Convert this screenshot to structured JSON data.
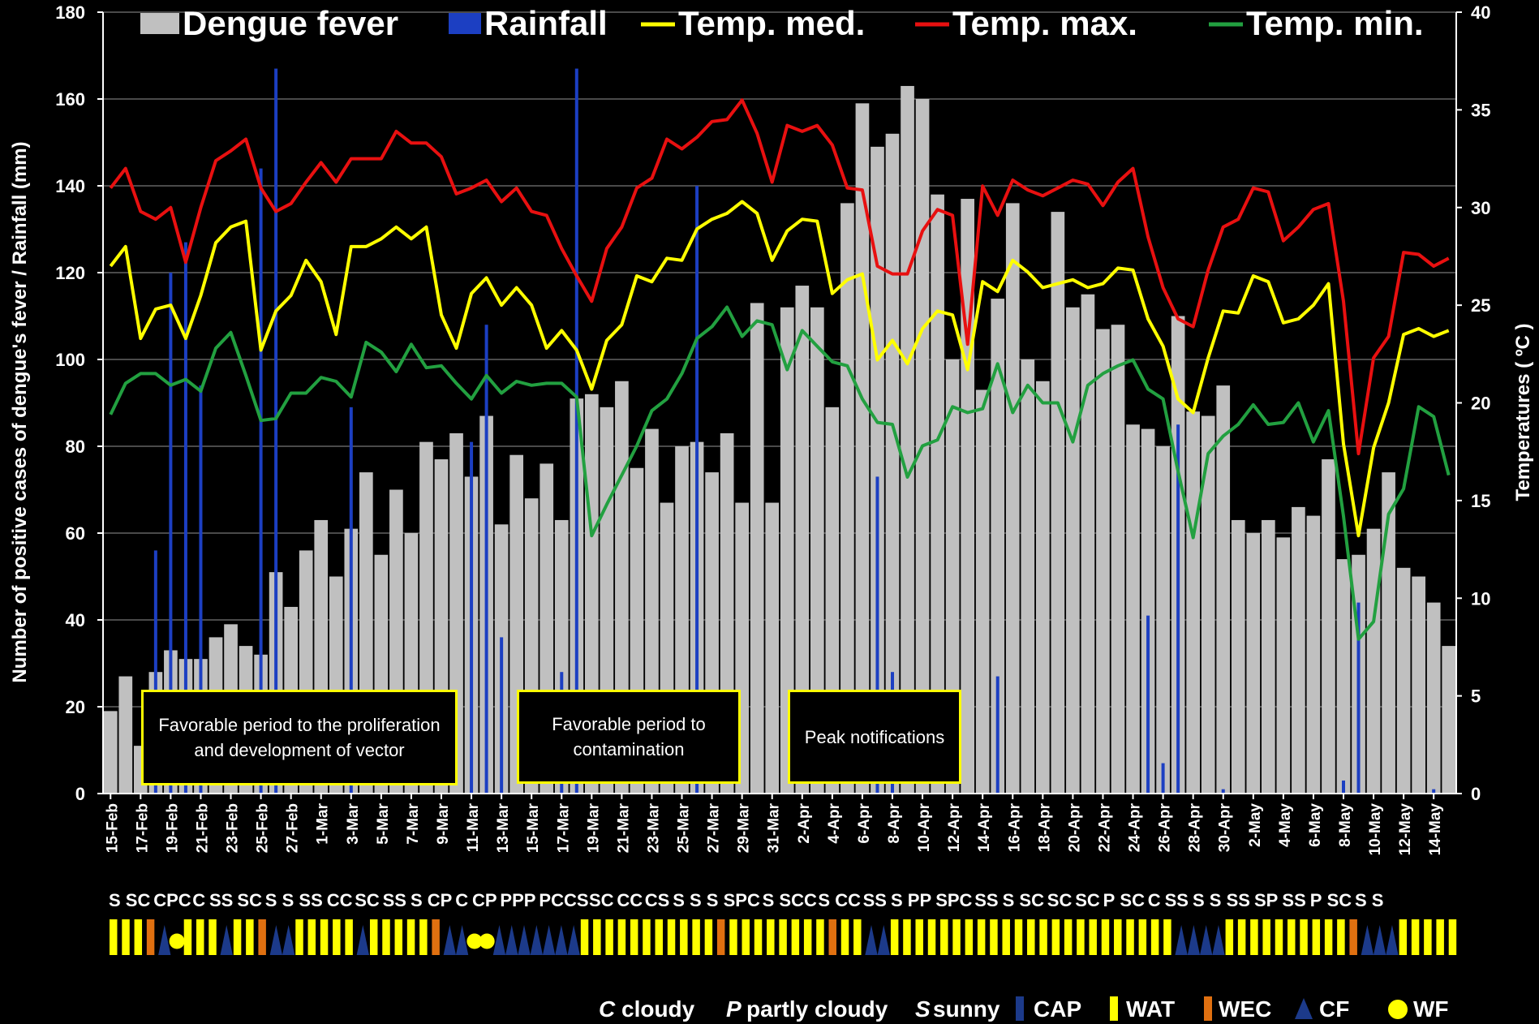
{
  "chart_data": {
    "type": "bar",
    "legend": [
      "Dengue fever",
      "Rainfall",
      "Temp. med.",
      "Temp. max.",
      "Temp. min."
    ],
    "legend_position": "top",
    "ylabel_left": "Number of positive cases of dengue's fever / Rainfall (mm)",
    "ylabel_right": "Temperatures  ( ºC )",
    "ylim_left": [
      0,
      180
    ],
    "ylim_right": [
      0,
      40
    ],
    "yticks_left": [
      "0",
      "20",
      "40",
      "60",
      "80",
      "100",
      "120",
      "140",
      "160",
      "180"
    ],
    "yticks_right": [
      "0",
      "5",
      "10",
      "15",
      "20",
      "25",
      "30",
      "35",
      "40"
    ],
    "grid": true,
    "colors": {
      "dengue": "#c0c0c0",
      "rain": "#1c3fc2",
      "med": "#ffff00",
      "max": "#e81010",
      "min": "#22a040",
      "box_border": "#ffff00"
    },
    "x_labels": [
      "15-Feb",
      "17-Feb",
      "19-Feb",
      "21-Feb",
      "23-Feb",
      "25-Feb",
      "27-Feb",
      "1-Mar",
      "3-Mar",
      "5-Mar",
      "7-Mar",
      "9-Mar",
      "11-Mar",
      "13-Mar",
      "15-Mar",
      "17-Mar",
      "19-Mar",
      "21-Mar",
      "23-Mar",
      "25-Mar",
      "27-Mar",
      "29-Mar",
      "31-Mar",
      "2-Apr",
      "4-Apr",
      "6-Apr",
      "8-Apr",
      "10-Apr",
      "12-Apr",
      "14-Apr",
      "16-Apr",
      "18-Apr",
      "20-Apr",
      "22-Apr",
      "24-Apr",
      "26-Apr",
      "28-Apr",
      "30-Apr",
      "2-May",
      "4-May",
      "6-May",
      "8-May",
      "10-May",
      "12-May",
      "14-May"
    ],
    "dengue": [
      19,
      27,
      11,
      28,
      33,
      31,
      31,
      36,
      39,
      34,
      32,
      51,
      43,
      56,
      63,
      50,
      61,
      74,
      55,
      70,
      60,
      81,
      77,
      83,
      73,
      87,
      62,
      78,
      68,
      76,
      63,
      91,
      92,
      89,
      95,
      75,
      84,
      67,
      80,
      81,
      74,
      83,
      67,
      113,
      67,
      112,
      117,
      112,
      89,
      136,
      159,
      149,
      152,
      163,
      160,
      138,
      100,
      137,
      93,
      114,
      136,
      100,
      95,
      134,
      112,
      115,
      107,
      108,
      85,
      84,
      80,
      110,
      88,
      87,
      94,
      63,
      60,
      63,
      59,
      66,
      64,
      77,
      54,
      55,
      61,
      74,
      52,
      50,
      44,
      34
    ],
    "rainfall": [
      0,
      0,
      0,
      56,
      120,
      127,
      94,
      0,
      0,
      0,
      144,
      167,
      0,
      0,
      0,
      0,
      89,
      0,
      0,
      0,
      0,
      0,
      0,
      0,
      81,
      108,
      36,
      0,
      0,
      0,
      28,
      167,
      0,
      0,
      0,
      0,
      0,
      0,
      0,
      140,
      0,
      0,
      0,
      0,
      0,
      0,
      0,
      0,
      0,
      0,
      0,
      73,
      28,
      0,
      0,
      0,
      0,
      0,
      0,
      27,
      0,
      0,
      0,
      0,
      0,
      0,
      0,
      0,
      0,
      41,
      7,
      85,
      0,
      0,
      1,
      0,
      0,
      0,
      0,
      0,
      0,
      0,
      3,
      44,
      0,
      0,
      0,
      0,
      1,
      0
    ],
    "temp_med": [
      27,
      28,
      23.3,
      24.8,
      25,
      23.3,
      25.5,
      28.2,
      29,
      29.3,
      22.7,
      24.7,
      25.5,
      27.3,
      26.2,
      23.5,
      28,
      28,
      28.4,
      29,
      28.4,
      29,
      24.5,
      22.8,
      25.6,
      26.4,
      25,
      25.9,
      25,
      22.8,
      23.7,
      22.7,
      20.7,
      23.2,
      24,
      26.5,
      26.2,
      27.4,
      27.3,
      28.9,
      29.4,
      29.7,
      30.3,
      29.7,
      27.3,
      28.8,
      29.4,
      29.3,
      25.6,
      26.3,
      26.6,
      22.2,
      23.2,
      22,
      23.8,
      24.7,
      24.5,
      21.7,
      26.2,
      25.7,
      27.3,
      26.7,
      25.9,
      26.1,
      26.3,
      25.9,
      26.1,
      26.9,
      26.8,
      24.3,
      22.9,
      20.2,
      19.5,
      22.3,
      24.7,
      24.6,
      26.5,
      26.2,
      24.1,
      24.3,
      25,
      26.1,
      17.9,
      13.2,
      17.7,
      20,
      23.5,
      23.8,
      23.4,
      23.7
    ],
    "temp_max": [
      31,
      32,
      29.8,
      29.4,
      30,
      27.2,
      30,
      32.4,
      32.9,
      33.5,
      31,
      29.8,
      30.2,
      31.3,
      32.3,
      31.3,
      32.5,
      32.5,
      32.5,
      33.9,
      33.3,
      33.3,
      32.6,
      30.7,
      31,
      31.4,
      30.3,
      31,
      29.8,
      29.6,
      27.9,
      26.5,
      25.2,
      27.9,
      29,
      31,
      31.5,
      33.5,
      33,
      33.6,
      34.4,
      34.5,
      35.5,
      33.8,
      31.3,
      34.2,
      33.9,
      34.2,
      33.2,
      31,
      30.9,
      27,
      26.6,
      26.6,
      28.8,
      29.9,
      29.6,
      23,
      31.1,
      29.6,
      31.4,
      30.9,
      30.6,
      31,
      31.4,
      31.2,
      30.1,
      31.3,
      32,
      28.5,
      25.9,
      24.3,
      23.9,
      26.8,
      29,
      29.4,
      31,
      30.8,
      28.3,
      29,
      29.9,
      30.2,
      25.2,
      17.4,
      22.3,
      23.4,
      27.7,
      27.6,
      27,
      27.4
    ],
    "temp_min": [
      19.4,
      21,
      21.5,
      21.5,
      20.9,
      21.2,
      20.6,
      22.8,
      23.6,
      21.4,
      19.1,
      19.2,
      20.5,
      20.5,
      21.3,
      21.1,
      20.3,
      23.1,
      22.6,
      21.6,
      23,
      21.8,
      21.9,
      21,
      20.2,
      21.4,
      20.5,
      21.1,
      20.9,
      21,
      21,
      20.3,
      13.2,
      14.8,
      16.3,
      17.8,
      19.6,
      20.2,
      21.5,
      23.3,
      23.9,
      24.9,
      23.4,
      24.2,
      24,
      21.7,
      23.7,
      22.9,
      22.1,
      21.9,
      20.2,
      19,
      18.9,
      16.2,
      17.8,
      18.1,
      19.8,
      19.5,
      19.7,
      22,
      19.5,
      20.9,
      20,
      20,
      18,
      20.9,
      21.5,
      21.9,
      22.2,
      20.7,
      20.2,
      16.5,
      13.1,
      17.4,
      18.3,
      18.9,
      19.9,
      18.9,
      19,
      20,
      18,
      19.6,
      14.2,
      7.9,
      8.8,
      14.3,
      15.6,
      19.8,
      19.3,
      16.3
    ]
  },
  "sky": [
    "S",
    "SC",
    "CPC",
    "C",
    "SS",
    "SC",
    "S",
    "S",
    "SS",
    "CC",
    "SC",
    "SS",
    "S",
    "CP",
    "C",
    "CP",
    "PPP",
    "PCCS",
    "SC",
    "CC",
    "CS",
    "S",
    "S",
    "S",
    "SPC",
    "S",
    "SCC",
    "S",
    "CC",
    "SS",
    "S",
    "PP",
    "SPC",
    "SS",
    "S",
    "SC",
    "SC",
    "SC",
    "P",
    "SC",
    "C",
    "SS",
    "S",
    "S",
    "SS",
    "SP",
    "SS",
    "P",
    "SC",
    "S",
    "S"
  ],
  "annotations": [
    {
      "text": "Favorable period to the proliferation and development of vector"
    },
    {
      "text": "Favorable period to contamination"
    },
    {
      "text": "Peak notifications"
    }
  ],
  "footer_legend": {
    "c_key": "C",
    "c_label": "cloudy",
    "p_key": "P",
    "p_label": "partly cloudy",
    "s_key": "S",
    "s_label": "sunny",
    "cap": "CAP",
    "wat": "WAT",
    "wec": "WEC",
    "cf": "CF",
    "wf": "WF"
  },
  "weather_strip": "WWWEBCWWWBWWEBBWWWWWBWWWWWEBBCCBBBBBBBWWWWWWWWWWWEWWWWWWWWEWWBBWWWWWWWWWWWWWWWWWWWWWWWBBBBWWWWWWWWWWEBBBWWWWW"
}
